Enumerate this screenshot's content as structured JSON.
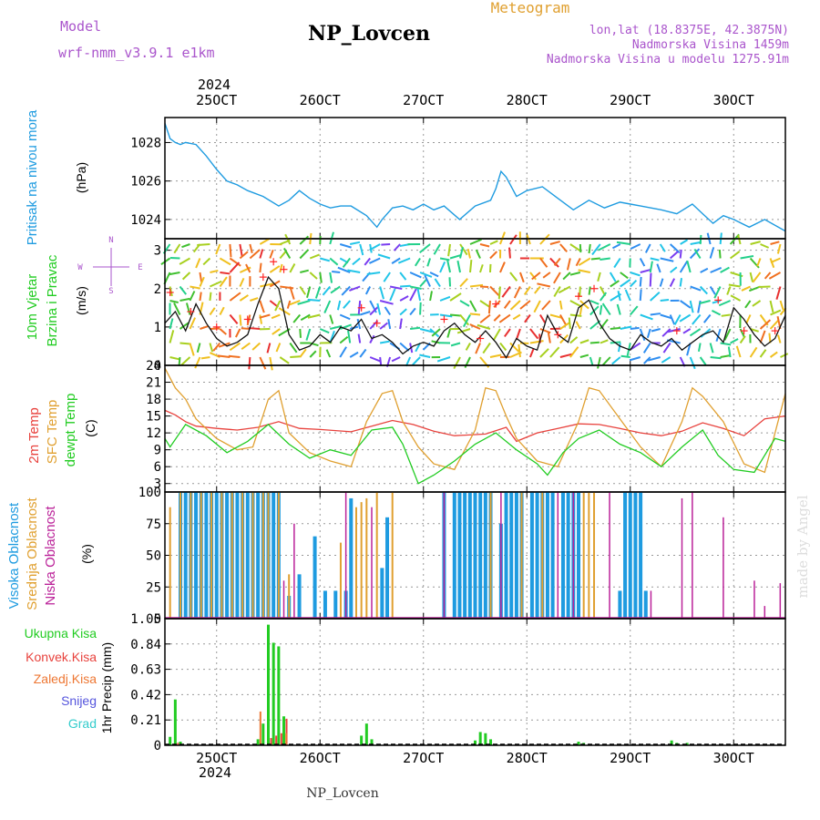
{
  "header": {
    "model_label": "Model",
    "model_value": "wrf-nmm_v3.9.1 e1km",
    "title": "NP_Lovcen",
    "meteogram_label": "Meteogram",
    "coords": "lon,lat (18.8375E, 42.3875N)",
    "altitude": "Nadmorska Visina 1459m",
    "model_altitude": "Nadmorska Visina u modelu 1275.91m",
    "footer": "NP_Lovcen",
    "credit": "made by Angel"
  },
  "colors": {
    "pressure": "#1e9be0",
    "temp2m": "#e8423d",
    "sfc_temp": "#e0a030",
    "dewpt": "#22cc22",
    "high_cloud": "#1e9be0",
    "mid_cloud": "#e0a030",
    "low_cloud": "#bb2299",
    "total_precip": "#22cc22",
    "conv_precip": "#e8423d",
    "frozen_precip": "#ee7733",
    "snow": "#5555dd",
    "graupel": "#33cccc",
    "purple_text": "#aa55cc",
    "wind_speed": "#111111",
    "gust": "#ff2222"
  },
  "time_axis": {
    "year": "2024",
    "start_day": 24.5,
    "end_day": 30.5,
    "ticks": [
      {
        "day": 25,
        "label": "25OCT"
      },
      {
        "day": 26,
        "label": "26OCT"
      },
      {
        "day": 27,
        "label": "27OCT"
      },
      {
        "day": 28,
        "label": "28OCT"
      },
      {
        "day": 29,
        "label": "29OCT"
      },
      {
        "day": 30,
        "label": "30OCT"
      }
    ]
  },
  "chart_data": [
    {
      "type": "line",
      "panel": "pressure",
      "ylabels": [
        "Pritisak na nivou mora",
        "(hPa)"
      ],
      "ylim": [
        1023,
        1029.3
      ],
      "yticks": [
        1024,
        1026,
        1028
      ],
      "series": [
        {
          "name": "Pritisak na nivou mora",
          "x": [
            24.5,
            24.55,
            24.6,
            24.65,
            24.7,
            24.8,
            24.9,
            25.0,
            25.1,
            25.2,
            25.3,
            25.45,
            25.6,
            25.7,
            25.8,
            25.9,
            26.0,
            26.1,
            26.2,
            26.3,
            26.45,
            26.55,
            26.6,
            26.7,
            26.8,
            26.9,
            27.0,
            27.1,
            27.2,
            27.35,
            27.5,
            27.65,
            27.7,
            27.75,
            27.8,
            27.9,
            28.0,
            28.15,
            28.3,
            28.45,
            28.6,
            28.75,
            28.9,
            29.0,
            29.1,
            29.3,
            29.45,
            29.6,
            29.7,
            29.8,
            29.9,
            30.0,
            30.15,
            30.3,
            30.5
          ],
          "y": [
            1029.0,
            1028.2,
            1028.0,
            1027.9,
            1028.0,
            1027.9,
            1027.3,
            1026.6,
            1026.0,
            1025.8,
            1025.5,
            1025.2,
            1024.7,
            1025.0,
            1025.5,
            1025.1,
            1024.8,
            1024.6,
            1024.7,
            1024.7,
            1024.2,
            1023.6,
            1024.0,
            1024.6,
            1024.7,
            1024.5,
            1024.8,
            1024.5,
            1024.7,
            1024.0,
            1024.7,
            1025.0,
            1025.6,
            1026.5,
            1026.2,
            1025.2,
            1025.5,
            1025.7,
            1025.1,
            1024.5,
            1025.0,
            1024.6,
            1024.9,
            1024.8,
            1024.7,
            1024.5,
            1024.3,
            1024.8,
            1024.3,
            1023.8,
            1024.2,
            1024.0,
            1023.6,
            1024.0,
            1023.4
          ]
        }
      ]
    },
    {
      "type": "line",
      "panel": "wind",
      "ylabels": [
        "10m Vjetar",
        "Brzina i Pravac",
        "(m/s)"
      ],
      "compass": [
        "N",
        "W",
        "E",
        "S"
      ],
      "ylim": [
        0,
        3.3
      ],
      "yticks": [
        0,
        1,
        2,
        3
      ],
      "series": [
        {
          "name": "Brzina",
          "x": [
            24.5,
            24.6,
            24.7,
            24.8,
            24.9,
            25.0,
            25.1,
            25.2,
            25.3,
            25.4,
            25.5,
            25.6,
            25.7,
            25.8,
            25.9,
            26.0,
            26.1,
            26.2,
            26.3,
            26.4,
            26.5,
            26.6,
            26.7,
            26.8,
            26.9,
            27.0,
            27.1,
            27.2,
            27.3,
            27.4,
            27.5,
            27.6,
            27.7,
            27.8,
            27.9,
            28.0,
            28.1,
            28.2,
            28.3,
            28.4,
            28.5,
            28.6,
            28.7,
            28.8,
            28.9,
            29.0,
            29.1,
            29.2,
            29.3,
            29.4,
            29.5,
            29.6,
            29.7,
            29.8,
            29.9,
            30.0,
            30.1,
            30.2,
            30.3,
            30.4,
            30.5
          ],
          "y": [
            1.1,
            1.4,
            0.9,
            1.6,
            1.1,
            0.7,
            0.5,
            0.6,
            0.8,
            1.6,
            2.3,
            2.0,
            0.8,
            0.4,
            0.5,
            0.8,
            0.6,
            1.0,
            0.9,
            1.2,
            0.7,
            0.8,
            0.6,
            0.3,
            0.5,
            0.6,
            0.5,
            0.9,
            1.1,
            0.8,
            0.6,
            0.9,
            0.6,
            0.2,
            0.7,
            0.5,
            0.4,
            1.3,
            0.8,
            0.6,
            1.5,
            1.7,
            1.1,
            0.7,
            0.5,
            0.4,
            0.8,
            0.6,
            0.5,
            0.7,
            0.4,
            0.6,
            0.8,
            0.9,
            0.6,
            1.5,
            1.2,
            0.8,
            0.5,
            0.7,
            1.3
          ]
        },
        {
          "name": "Udar",
          "x": [
            24.55,
            24.75,
            25.0,
            25.3,
            25.45,
            25.55,
            25.65,
            26.4,
            26.55,
            27.2,
            27.55,
            27.7,
            28.3,
            28.5,
            28.65,
            29.45,
            29.85,
            30.1,
            30.4
          ],
          "y": [
            1.9,
            1.4,
            1.0,
            1.2,
            2.3,
            2.7,
            2.5,
            1.5,
            1.1,
            1.2,
            0.7,
            1.6,
            0.8,
            1.8,
            2.0,
            0.9,
            1.7,
            0.9,
            0.9
          ]
        }
      ]
    },
    {
      "type": "line",
      "panel": "temperature",
      "ylabels": [
        "2m Temp",
        "SFC Temp",
        "dewpt Temp",
        "(C)"
      ],
      "ylim": [
        1.5,
        24
      ],
      "yticks": [
        3,
        6,
        9,
        12,
        15,
        18,
        21,
        24
      ],
      "series": [
        {
          "name": "2m Temp",
          "x": [
            24.5,
            24.6,
            24.7,
            24.8,
            25.0,
            25.2,
            25.4,
            25.6,
            25.8,
            26.0,
            26.3,
            26.5,
            26.7,
            26.9,
            27.1,
            27.3,
            27.6,
            27.8,
            27.9,
            28.1,
            28.3,
            28.5,
            28.7,
            28.9,
            29.1,
            29.3,
            29.5,
            29.7,
            29.9,
            30.1,
            30.3,
            30.5
          ],
          "y": [
            16.0,
            15.2,
            14.0,
            13.2,
            12.8,
            12.5,
            13.0,
            14.0,
            12.8,
            12.6,
            12.2,
            13.2,
            14.2,
            13.5,
            12.3,
            11.5,
            11.8,
            13.0,
            10.5,
            12.0,
            12.8,
            13.6,
            13.5,
            12.8,
            12.0,
            11.5,
            12.3,
            13.8,
            12.8,
            11.5,
            14.5,
            15.0
          ]
        },
        {
          "name": "SFC Temp",
          "x": [
            24.5,
            24.6,
            24.7,
            24.8,
            25.0,
            25.2,
            25.35,
            25.5,
            25.6,
            25.7,
            25.9,
            26.1,
            26.3,
            26.45,
            26.6,
            26.7,
            26.8,
            26.95,
            27.1,
            27.3,
            27.5,
            27.6,
            27.7,
            27.8,
            27.9,
            28.1,
            28.3,
            28.5,
            28.6,
            28.7,
            28.9,
            29.1,
            29.3,
            29.5,
            29.6,
            29.7,
            29.9,
            30.1,
            30.3,
            30.5
          ],
          "y": [
            23.5,
            20.0,
            18.0,
            14.5,
            11.0,
            9.0,
            9.5,
            18.0,
            19.5,
            12.0,
            8.5,
            7.0,
            6.0,
            14.0,
            19.0,
            19.5,
            14.0,
            9.5,
            6.5,
            5.5,
            12.5,
            20.0,
            19.5,
            15.0,
            11.0,
            7.0,
            6.0,
            14.0,
            20.0,
            19.5,
            14.5,
            9.5,
            6.0,
            14.0,
            20.0,
            18.5,
            14.0,
            6.5,
            5.0,
            19.0
          ]
        },
        {
          "name": "dewpt Temp",
          "x": [
            24.5,
            24.55,
            24.7,
            24.9,
            25.1,
            25.3,
            25.5,
            25.7,
            25.9,
            26.1,
            26.3,
            26.5,
            26.7,
            26.8,
            26.95,
            27.1,
            27.3,
            27.5,
            27.7,
            27.9,
            28.1,
            28.2,
            28.35,
            28.5,
            28.7,
            28.9,
            29.1,
            29.3,
            29.5,
            29.7,
            29.85,
            30.0,
            30.2,
            30.4,
            30.5
          ],
          "y": [
            11.0,
            9.5,
            13.5,
            11.5,
            8.5,
            10.5,
            13.5,
            10.0,
            7.5,
            9.0,
            8.0,
            12.5,
            13.0,
            10.0,
            3.0,
            4.5,
            7.0,
            10.0,
            12.0,
            9.0,
            6.5,
            4.5,
            8.5,
            11.0,
            12.5,
            10.0,
            8.5,
            6.0,
            9.5,
            12.5,
            8.0,
            5.5,
            5.0,
            11.0,
            10.5
          ]
        }
      ]
    },
    {
      "type": "bar",
      "panel": "clouds",
      "ylabels": [
        "Visoka Oblacnost",
        "Srednja Oblacnost",
        "Niska Oblacnost",
        "(%)"
      ],
      "ylim": [
        0,
        100
      ],
      "yticks": [
        0,
        25,
        50,
        75,
        100
      ],
      "series": [
        {
          "name": "Visoka Oblacnost",
          "x": [
            24.65,
            24.7,
            24.75,
            24.8,
            24.85,
            24.9,
            24.95,
            25.0,
            25.05,
            25.1,
            25.15,
            25.2,
            25.25,
            25.3,
            25.35,
            25.4,
            25.45,
            25.5,
            25.55,
            25.6,
            25.7,
            25.8,
            25.95,
            26.05,
            26.15,
            26.25,
            26.3,
            26.6,
            26.65,
            27.2,
            27.3,
            27.35,
            27.4,
            27.45,
            27.5,
            27.55,
            27.6,
            27.65,
            27.75,
            27.8,
            27.85,
            27.9,
            27.95,
            28.05,
            28.1,
            28.15,
            28.2,
            28.25,
            28.35,
            28.4,
            28.45,
            28.5,
            28.9,
            28.95,
            29.0,
            29.05,
            29.1,
            29.15
          ],
          "y": [
            100,
            100,
            100,
            100,
            100,
            100,
            100,
            100,
            100,
            100,
            100,
            100,
            100,
            100,
            100,
            100,
            100,
            100,
            100,
            100,
            18,
            35,
            65,
            22,
            22,
            22,
            95,
            40,
            80,
            100,
            100,
            100,
            100,
            100,
            100,
            100,
            100,
            100,
            75,
            100,
            100,
            100,
            100,
            100,
            100,
            100,
            100,
            100,
            100,
            100,
            100,
            100,
            22,
            100,
            100,
            100,
            100,
            22
          ]
        },
        {
          "name": "Srednja Oblacnost",
          "x": [
            24.55,
            24.65,
            24.75,
            24.85,
            24.95,
            25.05,
            25.15,
            25.25,
            25.35,
            25.45,
            25.5,
            25.6,
            25.7,
            26.2,
            26.35,
            26.4,
            26.45,
            26.55,
            26.7,
            27.65,
            27.95,
            28.15,
            28.55,
            28.6,
            28.65
          ],
          "y": [
            88,
            100,
            100,
            100,
            100,
            100,
            100,
            100,
            100,
            100,
            100,
            100,
            35,
            60,
            88,
            92,
            95,
            100,
            100,
            100,
            100,
            100,
            100,
            100,
            100
          ]
        },
        {
          "name": "Niska Oblacnost",
          "x": [
            25.65,
            25.75,
            26.25,
            26.5,
            27.2,
            27.75,
            28.3,
            28.45,
            28.8,
            29.2,
            29.5,
            29.6,
            29.9,
            30.2,
            30.3,
            30.45
          ],
          "y": [
            30,
            75,
            100,
            88,
            100,
            100,
            100,
            100,
            100,
            22,
            95,
            100,
            80,
            30,
            10,
            28
          ]
        }
      ]
    },
    {
      "type": "bar",
      "panel": "precipitation",
      "ylabels": [
        "Ukupna Kisa",
        "Konvek.Kisa",
        "Zaledj.Kisa",
        "Snijeg",
        "Grad",
        "1hr Precip (mm)"
      ],
      "ylim": [
        0,
        1.05
      ],
      "yticks": [
        0,
        0.21,
        0.42,
        0.63,
        0.84,
        1.05
      ],
      "ytick_labels": [
        "0",
        "0.21",
        "0.42",
        "0.63",
        "0.84",
        "1.05"
      ],
      "series": [
        {
          "name": "Ukupna Kisa",
          "x": [
            24.55,
            24.6,
            24.65,
            25.4,
            25.45,
            25.5,
            25.55,
            25.6,
            25.65,
            26.4,
            26.45,
            26.5,
            27.5,
            27.55,
            27.6,
            27.65,
            28.5,
            28.55,
            29.4,
            29.45,
            29.55
          ],
          "y": [
            0.07,
            0.38,
            0.03,
            0.05,
            0.18,
            1.0,
            0.85,
            0.82,
            0.24,
            0.08,
            0.18,
            0.05,
            0.04,
            0.11,
            0.1,
            0.05,
            0.03,
            0.02,
            0.04,
            0.02,
            0.02
          ]
        },
        {
          "name": "Konvek.Kisa",
          "x": [
            24.6,
            25.5,
            25.55,
            25.6,
            25.65
          ],
          "y": [
            0.02,
            0.06,
            0.08,
            0.1,
            0.22
          ]
        },
        {
          "name": "Zaledj.Kisa",
          "x": [
            25.45,
            25.7
          ],
          "y": [
            0.28,
            0.1
          ]
        }
      ]
    }
  ]
}
